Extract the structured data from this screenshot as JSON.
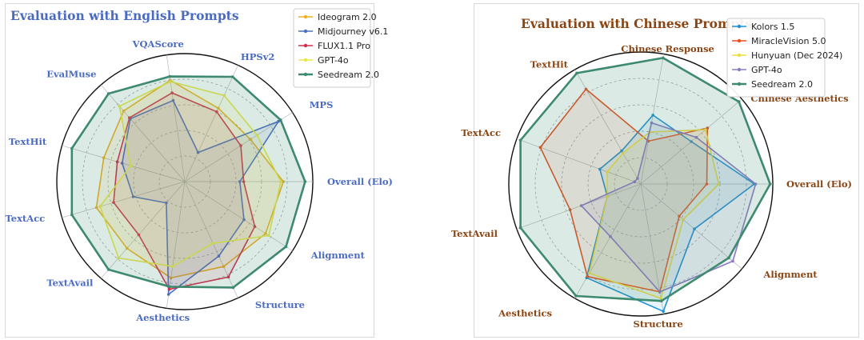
{
  "chart_data": [
    {
      "type": "radar",
      "title": "Evaluation with English Prompts",
      "title_color": "#4a6bc4",
      "axis_label_color": "#4a6bc4",
      "axes": [
        "Overall (Elo)",
        "MPS",
        "HPSv2",
        "VQAScore",
        "EvalMuse",
        "TextHit",
        "TextAcc",
        "TextAvail",
        "Aesthetics",
        "Structure",
        "Alignment"
      ],
      "rlim": [
        0,
        1
      ],
      "grid": true,
      "legend_position": "top-right",
      "series": [
        {
          "name": "Ideogram 2.0",
          "color": "#f0b021",
          "values": [
            0.77,
            0.61,
            0.63,
            0.8,
            0.73,
            0.66,
            0.72,
            0.69,
            0.76,
            0.73,
            0.75
          ]
        },
        {
          "name": "Midjourney v6.1",
          "color": "#4a6fc4",
          "values": [
            0.43,
            0.87,
            0.25,
            0.64,
            0.65,
            0.51,
            0.42,
            0.22,
            0.89,
            0.64,
            0.55
          ]
        },
        {
          "name": "FLUX1.1 Pro",
          "color": "#d22e4c",
          "values": [
            0.46,
            0.52,
            0.6,
            0.7,
            0.66,
            0.55,
            0.58,
            0.55,
            0.85,
            0.82,
            0.65
          ]
        },
        {
          "name": "GPT-4o",
          "color": "#e8e84a",
          "values": [
            0.75,
            0.67,
            0.74,
            0.79,
            0.78,
            0.44,
            0.69,
            0.79,
            0.67,
            0.53,
            0.78
          ]
        },
        {
          "name": "Seedream 2.0",
          "color": "#3d8a6e",
          "values": [
            0.94,
            0.89,
            0.9,
            0.83,
            0.91,
            0.92,
            0.92,
            0.91,
            0.83,
            0.91,
            0.94
          ]
        }
      ]
    },
    {
      "type": "radar",
      "title": "Evaluation with Chinese Prompts",
      "title_color": "#8b4513",
      "axis_label_color": "#8b4513",
      "axes": [
        "Overall (Elo)",
        "Chinese Aesthetics",
        "Chinese Response",
        "TextHit",
        "TextAcc",
        "TextAvail",
        "Aesthetics",
        "Structure",
        "Alignment"
      ],
      "rlim": [
        0,
        1
      ],
      "grid": true,
      "legend_position": "top-right",
      "series": [
        {
          "name": "Kolors 1.5",
          "color": "#1f91d6",
          "values": [
            0.86,
            0.5,
            0.53,
            0.29,
            0.33,
            0.27,
            0.82,
            0.98,
            0.53
          ]
        },
        {
          "name": "MiracleVision 5.0",
          "color": "#e8501e",
          "values": [
            0.5,
            0.66,
            0.33,
            0.83,
            0.81,
            0.57,
            0.81,
            0.83,
            0.38
          ]
        },
        {
          "name": "Hunyuan (Dec 2024)",
          "color": "#eedd44",
          "values": [
            0.59,
            0.64,
            0.4,
            0.27,
            0.27,
            0.27,
            0.78,
            0.88,
            0.42
          ]
        },
        {
          "name": "GPT-4o",
          "color": "#8b7bc2",
          "values": [
            0.87,
            0.55,
            0.47,
            0.05,
            0.05,
            0.48,
            0.46,
            0.83,
            0.91
          ]
        },
        {
          "name": "Seedream 2.0",
          "color": "#3d8a6e",
          "values": [
            0.98,
            0.97,
            0.97,
            0.97,
            0.97,
            0.97,
            0.98,
            0.9,
            0.87
          ]
        }
      ]
    }
  ]
}
